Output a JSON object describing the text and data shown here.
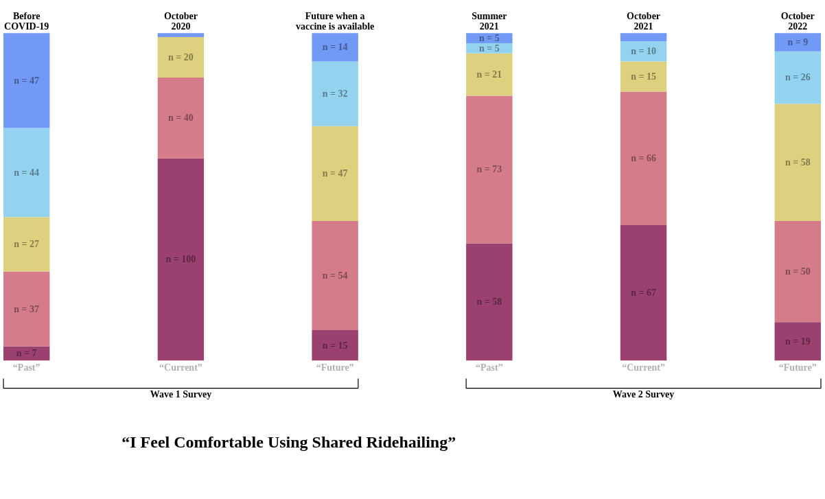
{
  "chart_data": {
    "type": "bar",
    "stacked": true,
    "title": "“I Feel Comfortable Using Shared Ridehailing”",
    "categories": [
      "Before\nCOVID-19",
      "October\n2020",
      "Future when a\nvaccine is available",
      "Summer\n2021",
      "October\n2021",
      "October\n2022"
    ],
    "series": [
      {
        "color": "#9b4170",
        "values": [
          7,
          100,
          15,
          58,
          67,
          19
        ],
        "value_labels": [
          "n = 7",
          "n = 100",
          "n = 15",
          "n = 58",
          "n = 67",
          "n = 19"
        ]
      },
      {
        "color": "#d47c8a",
        "values": [
          37,
          40,
          54,
          73,
          66,
          50
        ],
        "value_labels": [
          "n = 37",
          "n = 40",
          "n = 54",
          "n = 73",
          "n = 66",
          "n = 50"
        ]
      },
      {
        "color": "#ddd07e",
        "values": [
          27,
          20,
          47,
          21,
          15,
          58
        ],
        "value_labels": [
          "n = 27",
          "n = 20",
          "n = 47",
          "n = 21",
          "n = 15",
          "n = 58"
        ]
      },
      {
        "color": "#94d3ef",
        "values": [
          44,
          0,
          32,
          5,
          10,
          26
        ],
        "value_labels": [
          "n = 44",
          null,
          "n = 32",
          "n = 5",
          "n = 10",
          "n = 26"
        ]
      },
      {
        "color": "#7299f5",
        "values": [
          47,
          2,
          14,
          5,
          4,
          9
        ],
        "value_labels": [
          "n = 47",
          null,
          "n = 14",
          "n = 5",
          null,
          "n = 9"
        ]
      }
    ],
    "annotations": [
      "“Past”",
      "“Current”",
      "“Future”",
      "“Past”",
      "“Current”",
      "“Future”",
      "Wave 1 Survey",
      "Wave 2 Survey"
    ]
  }
}
